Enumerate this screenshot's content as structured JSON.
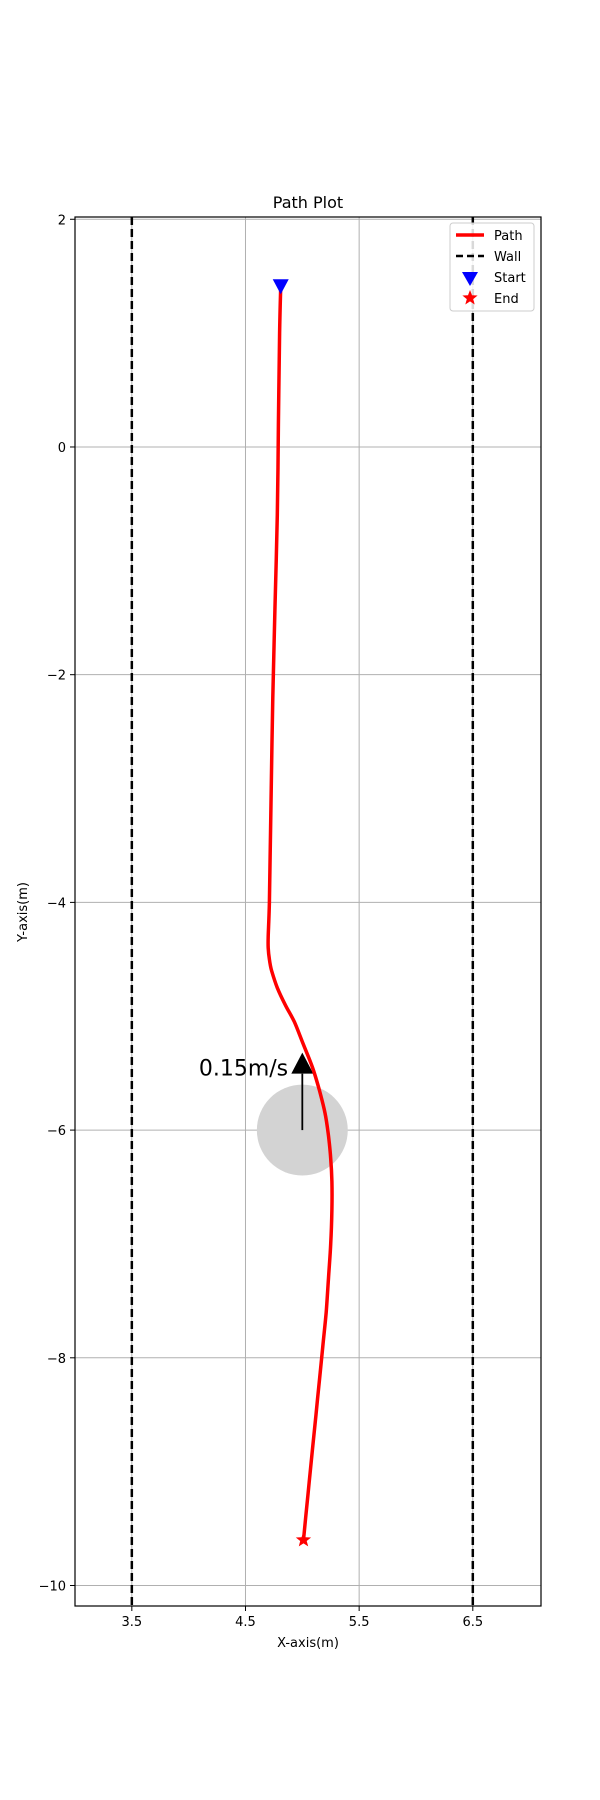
{
  "chart_data": {
    "type": "line",
    "title": "Path Plot",
    "xlabel": "X-axis(m)",
    "ylabel": "Y-axis(m)",
    "xlim": [
      3.0,
      7.1
    ],
    "ylim": [
      -10.18,
      2.02
    ],
    "xticks": [
      3.5,
      4.5,
      5.5,
      6.5
    ],
    "xtick_labels": [
      "3.5",
      "4.5",
      "5.5",
      "6.5"
    ],
    "yticks": [
      2,
      0,
      -2,
      -4,
      -6,
      -8,
      -10
    ],
    "ytick_labels": [
      "2",
      "0",
      "−2",
      "−4",
      "−6",
      "−8",
      "−10"
    ],
    "grid": true,
    "legend_position": "top-right",
    "legend": [
      "Path",
      "Wall",
      "Start",
      "End"
    ],
    "colors": {
      "path": "#ff0000",
      "wall": "#000000",
      "start": "#0000ff",
      "end": "#ff0000",
      "obstacle": "#d3d3d3",
      "grid": "#b0b0b0"
    },
    "series": [
      {
        "name": "Path",
        "x": [
          4.81,
          4.8,
          4.79,
          4.78,
          4.76,
          4.74,
          4.73,
          4.72,
          4.71,
          4.7,
          4.7,
          4.71,
          4.73,
          4.78,
          4.85,
          4.93,
          5.01,
          5.09,
          5.15,
          5.2,
          5.23,
          5.25,
          5.26,
          5.26,
          5.25,
          5.23,
          5.21,
          5.18,
          5.15,
          5.12,
          5.09,
          5.06,
          5.03,
          5.01
        ],
        "y": [
          1.4,
          1.0,
          0.2,
          -0.6,
          -1.4,
          -2.2,
          -2.8,
          -3.4,
          -4.0,
          -4.3,
          -4.4,
          -4.5,
          -4.6,
          -4.75,
          -4.9,
          -5.05,
          -5.25,
          -5.45,
          -5.65,
          -5.85,
          -6.05,
          -6.25,
          -6.45,
          -6.7,
          -7.0,
          -7.3,
          -7.6,
          -7.9,
          -8.2,
          -8.5,
          -8.8,
          -9.1,
          -9.4,
          -9.6
        ]
      },
      {
        "name": "Wall",
        "x": [
          3.5,
          3.5
        ],
        "y": [
          2.02,
          -10.18
        ]
      },
      {
        "name": "Wall",
        "x": [
          6.5,
          6.5
        ],
        "y": [
          2.02,
          -10.18
        ]
      }
    ],
    "start": {
      "x": 4.81,
      "y": 1.42
    },
    "end": {
      "x": 5.01,
      "y": -9.6
    },
    "obstacle": {
      "x": 5.0,
      "y": -6.0,
      "radius": 0.4
    },
    "velocity_arrow": {
      "x": 5.0,
      "y_from": -6.0,
      "y_to": -5.32
    },
    "annotations": [
      {
        "text": "0.15m/s",
        "x": 3.5,
        "y": -5.45
      }
    ]
  }
}
